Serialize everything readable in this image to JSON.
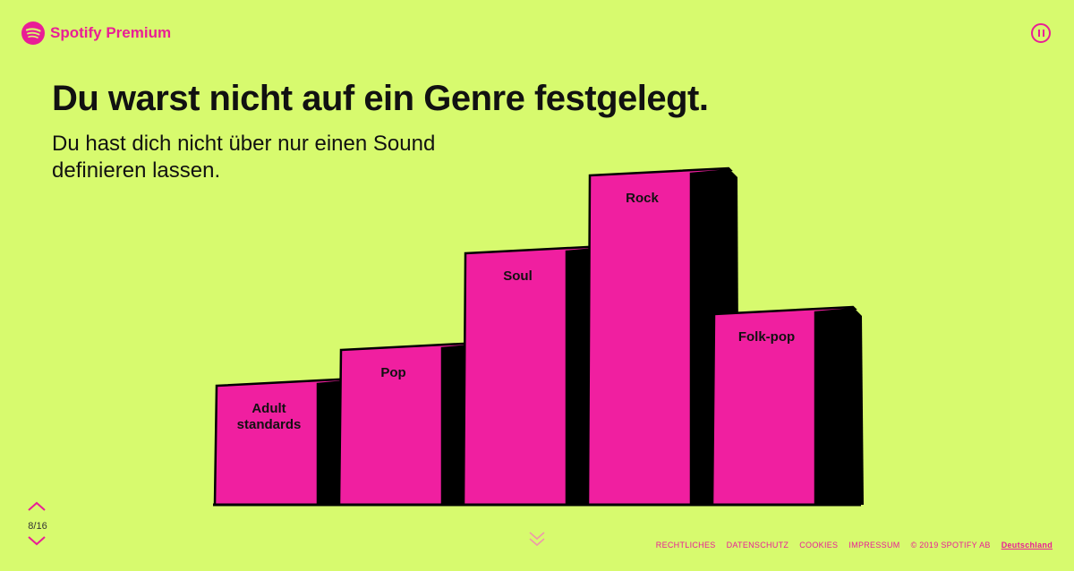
{
  "brand": {
    "name": "Spotify Premium",
    "icon": "spotify-logo-icon",
    "color": "#e91e96"
  },
  "player": {
    "pause_icon": "pause-icon"
  },
  "heading": "Du warst nicht auf ein Genre festgelegt.",
  "subheading": "Du hast dich nicht über nur einen Sound definieren lassen.",
  "chart_data": {
    "type": "bar",
    "categories": [
      "Adult standards",
      "Pop",
      "Soul",
      "Rock",
      "Folk-pop"
    ],
    "values": [
      135,
      175,
      283,
      370,
      215
    ],
    "colors": {
      "front": "#f01fa0",
      "side": "#000000"
    }
  },
  "pagination": {
    "current": "8/16",
    "up_icon": "chevron-up-icon",
    "down_icon": "chevron-down-icon"
  },
  "scroll_hint_icon": "double-chevron-down-icon",
  "footer": {
    "links": [
      "RECHTLICHES",
      "DATENSCHUTZ",
      "COOKIES",
      "IMPRESSUM"
    ],
    "copyright": "© 2019 SPOTIFY AB",
    "country": "Deutschland"
  }
}
